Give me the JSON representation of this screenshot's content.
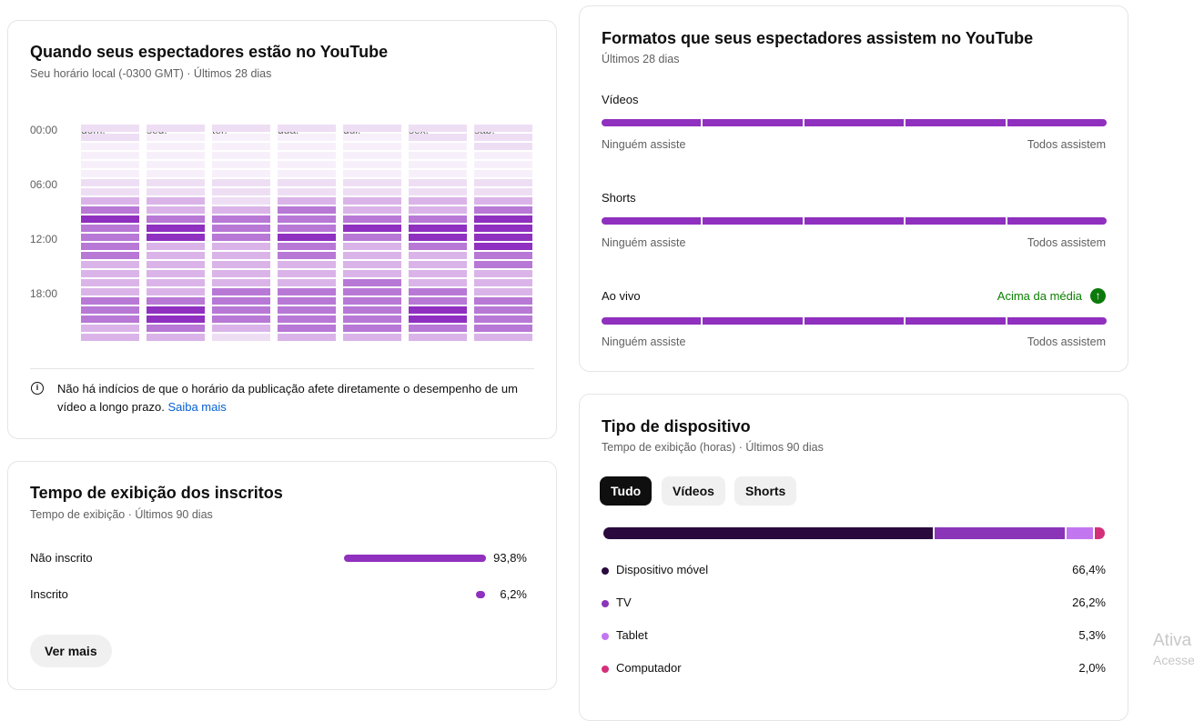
{
  "when": {
    "title": "Quando seus espectadores estão no YouTube",
    "subtitle": "Seu horário local (-0300 GMT) · Últimos 28 dias",
    "days": [
      "dom.",
      "seg.",
      "ter.",
      "qua.",
      "qui.",
      "sex.",
      "sáb."
    ],
    "hours": [
      "00:00",
      "06:00",
      "12:00",
      "18:00"
    ],
    "heatmap_levels": [
      [
        1,
        1,
        0,
        0,
        0,
        0,
        1,
        1,
        2,
        3,
        4,
        3,
        3,
        3,
        3,
        2,
        2,
        2,
        2,
        3,
        3,
        3,
        2,
        2
      ],
      [
        1,
        0,
        0,
        0,
        0,
        0,
        1,
        1,
        2,
        2,
        3,
        4,
        4,
        2,
        2,
        2,
        2,
        2,
        2,
        3,
        4,
        4,
        3,
        2
      ],
      [
        1,
        0,
        0,
        0,
        0,
        0,
        1,
        1,
        1,
        2,
        3,
        3,
        3,
        2,
        2,
        2,
        2,
        2,
        3,
        3,
        3,
        3,
        2,
        1
      ],
      [
        1,
        0,
        0,
        0,
        0,
        0,
        1,
        1,
        2,
        3,
        3,
        3,
        4,
        3,
        3,
        2,
        2,
        2,
        3,
        3,
        3,
        3,
        3,
        2
      ],
      [
        1,
        0,
        0,
        0,
        0,
        0,
        1,
        1,
        2,
        2,
        3,
        4,
        3,
        2,
        2,
        2,
        2,
        3,
        3,
        3,
        3,
        3,
        3,
        2
      ],
      [
        1,
        1,
        0,
        0,
        0,
        0,
        1,
        1,
        2,
        2,
        3,
        4,
        4,
        3,
        2,
        2,
        2,
        2,
        3,
        3,
        4,
        4,
        3,
        2
      ],
      [
        1,
        1,
        1,
        0,
        0,
        0,
        1,
        1,
        2,
        3,
        4,
        4,
        4,
        4,
        3,
        3,
        2,
        2,
        2,
        3,
        3,
        3,
        3,
        2
      ]
    ],
    "level_colors": [
      "#f7f0fa",
      "#eedef4",
      "#dab4e8",
      "#b878d6",
      "#9030c0"
    ],
    "note": "Não há indícios de que o horário da publicação afete diretamente o desempenho de um vídeo a longo prazo.",
    "note_link": "Saiba mais"
  },
  "subs": {
    "title": "Tempo de exibição dos inscritos",
    "subtitle": "Tempo de exibição · Últimos 90 dias",
    "rows": [
      {
        "label": "Não inscrito",
        "value": "93,8%",
        "fraction": 0.938
      },
      {
        "label": "Inscrito",
        "value": "6,2%",
        "fraction": 0.062
      }
    ],
    "button": "Ver mais"
  },
  "formats": {
    "title": "Formatos que seus espectadores assistem no YouTube",
    "subtitle": "Últimos 28 dias",
    "rows": [
      {
        "label": "Vídeos",
        "min": "Ninguém assiste",
        "max": "Todos assistem"
      },
      {
        "label": "Shorts",
        "min": "Ninguém assiste",
        "max": "Todos assistem"
      },
      {
        "label": "Ao vivo",
        "min": "Ninguém assiste",
        "max": "Todos assistem",
        "badge": "Acima da média"
      }
    ]
  },
  "device": {
    "title": "Tipo de dispositivo",
    "subtitle": "Tempo de exibição (horas) · Últimos 90 dias",
    "tabs": [
      "Tudo",
      "Vídeos",
      "Shorts"
    ],
    "active_tab": 0,
    "items": [
      {
        "label": "Dispositivo móvel",
        "value": "66,4%",
        "share": 66.4,
        "color": "#2a0a3e"
      },
      {
        "label": "TV",
        "value": "26,2%",
        "share": 26.2,
        "color": "#8a35b8"
      },
      {
        "label": "Tablet",
        "value": "5,3%",
        "share": 5.3,
        "color": "#c277f0"
      },
      {
        "label": "Computador",
        "value": "2,0%",
        "share": 2.0,
        "color": "#d4307a"
      }
    ]
  },
  "watermark": {
    "line1": "Ativa",
    "line2": "Acesse"
  }
}
